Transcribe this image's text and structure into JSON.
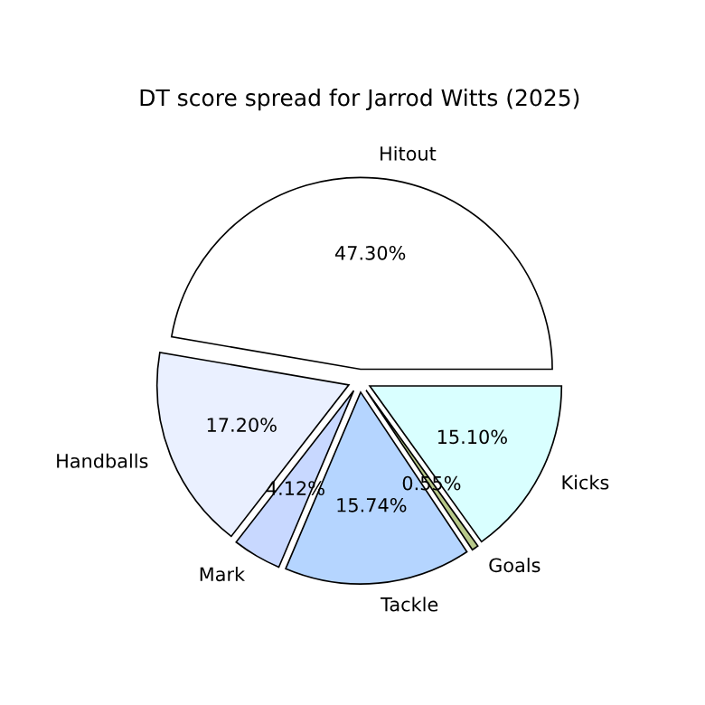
{
  "chart_data": {
    "type": "pie",
    "title": "DT score spread for Jarrod Witts (2025)",
    "categories": [
      "Hitout",
      "Handballs",
      "Mark",
      "Tackle",
      "Goals",
      "Kicks"
    ],
    "values": [
      47.3,
      17.2,
      4.12,
      15.74,
      0.55,
      15.1
    ],
    "value_labels": [
      "47.30%",
      "17.20%",
      "4.12%",
      "15.74%",
      "0.55%",
      "15.10%"
    ],
    "colors": [
      "#ffffff",
      "#eaf0ff",
      "#c8d8ff",
      "#b5d5ff",
      "#b8c98a",
      "#d9ffff"
    ],
    "legend": false
  }
}
